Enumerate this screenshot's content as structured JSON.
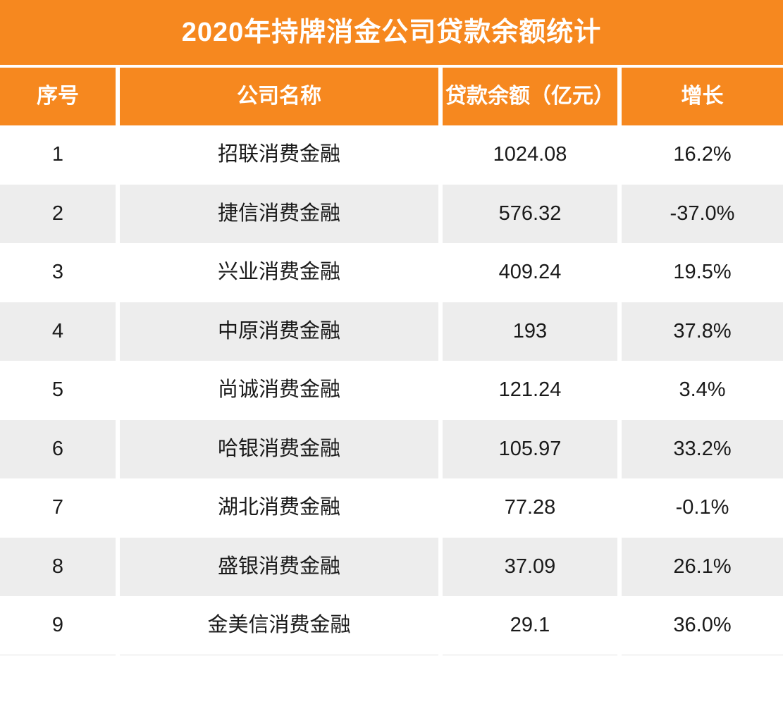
{
  "title": "2020年持牌消金公司贷款余额统计",
  "colors": {
    "accent": "#F6881F",
    "header_text": "#FFFFFF",
    "row_alt": "#EDEDED",
    "text": "#1A1A1A"
  },
  "chart_data": {
    "type": "table",
    "title": "2020年持牌消金公司贷款余额统计",
    "columns": [
      "序号",
      "公司名称",
      "贷款余额（亿元）",
      "增长"
    ],
    "rows": [
      {
        "seq": "1",
        "company": "招联消费金融",
        "balance": "1024.08",
        "growth": "16.2%"
      },
      {
        "seq": "2",
        "company": "捷信消费金融",
        "balance": "576.32",
        "growth": "-37.0%"
      },
      {
        "seq": "3",
        "company": "兴业消费金融",
        "balance": "409.24",
        "growth": "19.5%"
      },
      {
        "seq": "4",
        "company": "中原消费金融",
        "balance": "193",
        "growth": "37.8%"
      },
      {
        "seq": "5",
        "company": "尚诚消费金融",
        "balance": "121.24",
        "growth": "3.4%"
      },
      {
        "seq": "6",
        "company": "哈银消费金融",
        "balance": "105.97",
        "growth": "33.2%"
      },
      {
        "seq": "7",
        "company": "湖北消费金融",
        "balance": "77.28",
        "growth": "-0.1%"
      },
      {
        "seq": "8",
        "company": "盛银消费金融",
        "balance": "37.09",
        "growth": "26.1%"
      },
      {
        "seq": "9",
        "company": "金美信消费金融",
        "balance": "29.1",
        "growth": "36.0%"
      }
    ],
    "balance_values": [
      1024.08,
      576.32,
      409.24,
      193,
      121.24,
      105.97,
      77.28,
      37.09,
      29.1
    ],
    "growth_pct_values": [
      16.2,
      -37.0,
      19.5,
      37.8,
      3.4,
      33.2,
      -0.1,
      26.1,
      36.0
    ],
    "layout": {
      "striped": true,
      "header_background": "#F6881F",
      "alt_row_background": "#EDEDED"
    }
  }
}
